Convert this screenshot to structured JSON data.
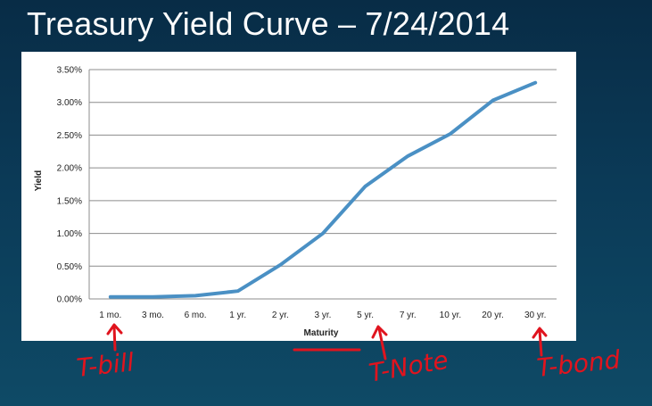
{
  "slide": {
    "title": "Treasury Yield Curve – 7/24/2014"
  },
  "annotations": {
    "tbill": "T-bill",
    "tnote": "T-Note",
    "tbond": "T-bond",
    "color": "#e0141e"
  },
  "chart_data": {
    "type": "line",
    "title": "",
    "xlabel": "Maturity",
    "ylabel": "Yield",
    "categories": [
      "1 mo.",
      "3 mo.",
      "6 mo.",
      "1 yr.",
      "2 yr.",
      "3 yr.",
      "5 yr.",
      "7 yr.",
      "10 yr.",
      "20 yr.",
      "30 yr."
    ],
    "series": [
      {
        "name": "Yield",
        "values": [
          0.03,
          0.03,
          0.05,
          0.12,
          0.52,
          1.0,
          1.72,
          2.18,
          2.52,
          3.03,
          3.3
        ],
        "color": "#4a90c4"
      }
    ],
    "y_ticks": [
      "0.00%",
      "0.50%",
      "1.00%",
      "1.50%",
      "2.00%",
      "2.50%",
      "3.00%",
      "3.50%"
    ],
    "ylim": [
      0,
      3.5
    ],
    "grid": true
  }
}
